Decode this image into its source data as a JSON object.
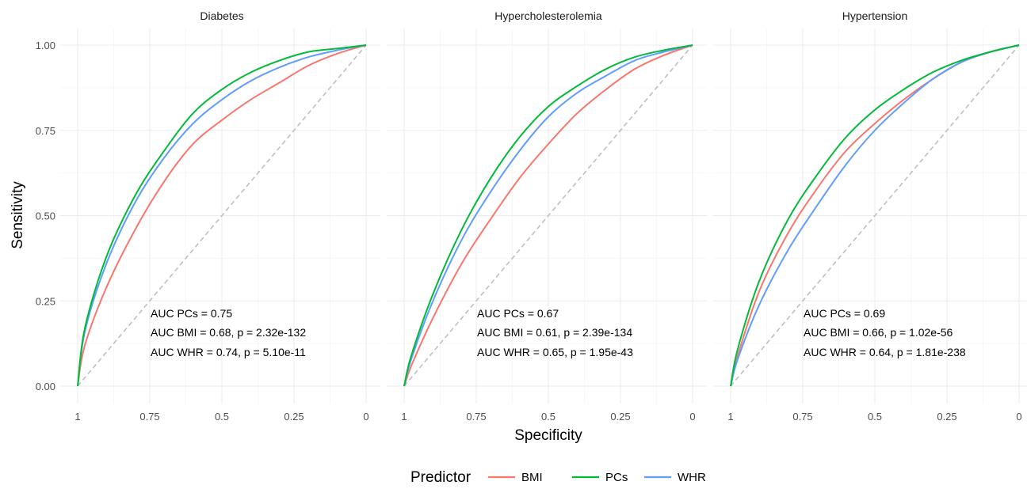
{
  "chart_data": {
    "type": "line",
    "xlabel": "Specificity",
    "ylabel": "Sensitivity",
    "xlim": [
      1,
      0
    ],
    "ylim": [
      0,
      1
    ],
    "x_ticks": [
      1,
      0.75,
      0.5,
      0.25,
      0
    ],
    "x_tick_labels": [
      "1",
      "0.75",
      "0.5",
      "0.25",
      "0"
    ],
    "y_ticks": [
      0,
      0.25,
      0.5,
      0.75,
      1
    ],
    "y_tick_labels": [
      "0.00",
      "0.25",
      "0.50",
      "0.75",
      "1.00"
    ],
    "grid": true,
    "reference_line": "diagonal-dashed",
    "legend": {
      "title": "Predictor",
      "position": "bottom",
      "entries": [
        {
          "name": "BMI",
          "color": "#F8766D"
        },
        {
          "name": "PCs",
          "color": "#00BA38"
        },
        {
          "name": "WHR",
          "color": "#619CFF"
        }
      ]
    },
    "panels": [
      {
        "title": "Diabetes",
        "annotations": [
          "AUC PCs = 0.75",
          "AUC BMI = 0.68, p = 2.32e-132",
          "AUC WHR = 0.74, p = 5.10e-11"
        ],
        "series": [
          {
            "name": "BMI",
            "color": "#F8766D",
            "points": [
              [
                1,
                0
              ],
              [
                0.975,
                0.12
              ],
              [
                0.9,
                0.29
              ],
              [
                0.8,
                0.46
              ],
              [
                0.7,
                0.6
              ],
              [
                0.6,
                0.71
              ],
              [
                0.5,
                0.78
              ],
              [
                0.4,
                0.84
              ],
              [
                0.3,
                0.89
              ],
              [
                0.2,
                0.94
              ],
              [
                0.1,
                0.975
              ],
              [
                0,
                1
              ]
            ]
          },
          {
            "name": "PCs",
            "color": "#00BA38",
            "points": [
              [
                1,
                0
              ],
              [
                0.975,
                0.17
              ],
              [
                0.9,
                0.38
              ],
              [
                0.8,
                0.56
              ],
              [
                0.7,
                0.69
              ],
              [
                0.6,
                0.8
              ],
              [
                0.5,
                0.87
              ],
              [
                0.4,
                0.92
              ],
              [
                0.3,
                0.955
              ],
              [
                0.2,
                0.98
              ],
              [
                0.1,
                0.99
              ],
              [
                0,
                1
              ]
            ]
          },
          {
            "name": "WHR",
            "color": "#619CFF",
            "points": [
              [
                1,
                0
              ],
              [
                0.975,
                0.16
              ],
              [
                0.9,
                0.36
              ],
              [
                0.8,
                0.54
              ],
              [
                0.7,
                0.67
              ],
              [
                0.6,
                0.77
              ],
              [
                0.5,
                0.84
              ],
              [
                0.4,
                0.895
              ],
              [
                0.3,
                0.935
              ],
              [
                0.2,
                0.965
              ],
              [
                0.1,
                0.985
              ],
              [
                0,
                1
              ]
            ]
          }
        ]
      },
      {
        "title": "Hypercholesterolemia",
        "annotations": [
          "AUC PCs = 0.67",
          "AUC BMI = 0.61, p = 2.39e-134",
          "AUC WHR = 0.65, p = 1.95e-43"
        ],
        "series": [
          {
            "name": "BMI",
            "color": "#F8766D",
            "points": [
              [
                1,
                0
              ],
              [
                0.975,
                0.06
              ],
              [
                0.9,
                0.2
              ],
              [
                0.8,
                0.36
              ],
              [
                0.7,
                0.49
              ],
              [
                0.6,
                0.61
              ],
              [
                0.5,
                0.71
              ],
              [
                0.4,
                0.8
              ],
              [
                0.3,
                0.87
              ],
              [
                0.2,
                0.93
              ],
              [
                0.1,
                0.97
              ],
              [
                0,
                1
              ]
            ]
          },
          {
            "name": "PCs",
            "color": "#00BA38",
            "points": [
              [
                1,
                0
              ],
              [
                0.975,
                0.09
              ],
              [
                0.9,
                0.27
              ],
              [
                0.8,
                0.46
              ],
              [
                0.7,
                0.61
              ],
              [
                0.6,
                0.73
              ],
              [
                0.5,
                0.82
              ],
              [
                0.4,
                0.88
              ],
              [
                0.3,
                0.93
              ],
              [
                0.2,
                0.965
              ],
              [
                0.1,
                0.985
              ],
              [
                0,
                1
              ]
            ]
          },
          {
            "name": "WHR",
            "color": "#619CFF",
            "points": [
              [
                1,
                0
              ],
              [
                0.975,
                0.08
              ],
              [
                0.9,
                0.25
              ],
              [
                0.8,
                0.43
              ],
              [
                0.7,
                0.57
              ],
              [
                0.6,
                0.69
              ],
              [
                0.5,
                0.79
              ],
              [
                0.4,
                0.86
              ],
              [
                0.3,
                0.91
              ],
              [
                0.2,
                0.955
              ],
              [
                0.1,
                0.98
              ],
              [
                0,
                1
              ]
            ]
          }
        ]
      },
      {
        "title": "Hypertension",
        "annotations": [
          "AUC PCs = 0.69",
          "AUC BMI = 0.66, p = 1.02e-56",
          "AUC WHR = 0.64, p = 1.81e-238"
        ],
        "series": [
          {
            "name": "BMI",
            "color": "#F8766D",
            "points": [
              [
                1,
                0
              ],
              [
                0.975,
                0.09
              ],
              [
                0.9,
                0.28
              ],
              [
                0.8,
                0.45
              ],
              [
                0.7,
                0.58
              ],
              [
                0.6,
                0.69
              ],
              [
                0.5,
                0.77
              ],
              [
                0.4,
                0.84
              ],
              [
                0.3,
                0.9
              ],
              [
                0.2,
                0.95
              ],
              [
                0.1,
                0.98
              ],
              [
                0,
                1
              ]
            ]
          },
          {
            "name": "PCs",
            "color": "#00BA38",
            "points": [
              [
                1,
                0
              ],
              [
                0.975,
                0.11
              ],
              [
                0.9,
                0.31
              ],
              [
                0.8,
                0.49
              ],
              [
                0.7,
                0.62
              ],
              [
                0.6,
                0.73
              ],
              [
                0.5,
                0.81
              ],
              [
                0.4,
                0.87
              ],
              [
                0.3,
                0.92
              ],
              [
                0.2,
                0.955
              ],
              [
                0.1,
                0.98
              ],
              [
                0,
                1
              ]
            ]
          },
          {
            "name": "WHR",
            "color": "#619CFF",
            "points": [
              [
                1,
                0
              ],
              [
                0.975,
                0.08
              ],
              [
                0.9,
                0.24
              ],
              [
                0.8,
                0.4
              ],
              [
                0.7,
                0.53
              ],
              [
                0.6,
                0.65
              ],
              [
                0.5,
                0.75
              ],
              [
                0.4,
                0.83
              ],
              [
                0.3,
                0.9
              ],
              [
                0.2,
                0.95
              ],
              [
                0.1,
                0.98
              ],
              [
                0,
                1
              ]
            ]
          }
        ]
      }
    ]
  }
}
